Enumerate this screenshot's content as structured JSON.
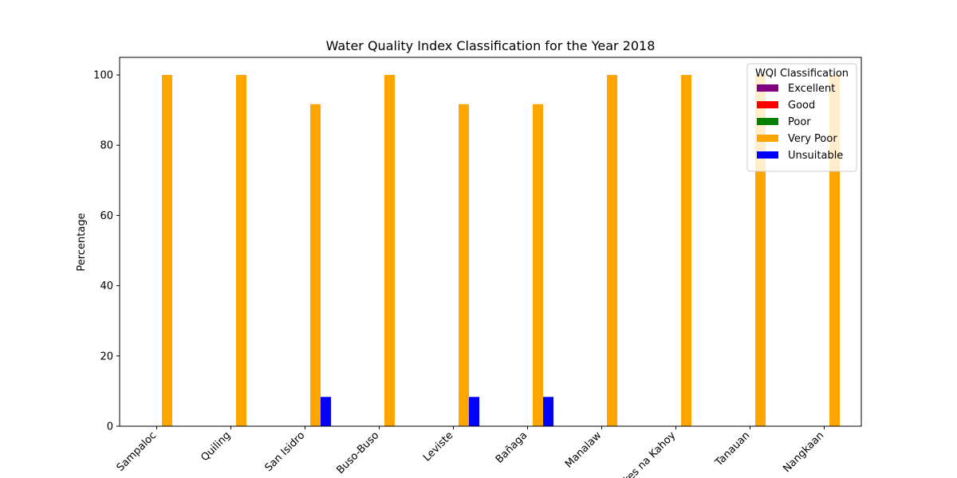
{
  "chart_data": {
    "type": "bar",
    "title": "Water Quality Index Classification for the Year 2018",
    "xlabel": "",
    "ylabel": "Percentage",
    "ylim": [
      0,
      105
    ],
    "yticks": [
      0,
      20,
      40,
      60,
      80,
      100
    ],
    "grid": false,
    "categories": [
      "Sampaloc",
      "Quiling",
      "San Isidro",
      "Buso-Buso",
      "Leviste",
      "Bañaga",
      "Manalaw",
      "Tres na Kahoy",
      "Tanauan",
      "Nangkaan"
    ],
    "legend": {
      "title": "WQI Classification",
      "placement": "top-right"
    },
    "series": [
      {
        "name": "Excellent",
        "color": "#800080",
        "values": [
          0,
          0,
          0,
          0,
          0,
          0,
          0,
          0,
          0,
          0
        ]
      },
      {
        "name": "Good",
        "color": "#ff0000",
        "values": [
          0,
          0,
          0,
          0,
          0,
          0,
          0,
          0,
          0,
          0
        ]
      },
      {
        "name": "Poor",
        "color": "#008000",
        "values": [
          0,
          0,
          0,
          0,
          0,
          0,
          0,
          0,
          0,
          0
        ]
      },
      {
        "name": "Very Poor",
        "color": "#ffa500",
        "values": [
          100,
          100,
          91.67,
          100,
          91.67,
          91.67,
          100,
          100,
          100,
          100
        ]
      },
      {
        "name": "Unsuitable",
        "color": "#0000ff",
        "values": [
          0,
          0,
          8.33,
          0,
          8.33,
          8.33,
          0,
          0,
          0,
          0
        ]
      }
    ]
  }
}
